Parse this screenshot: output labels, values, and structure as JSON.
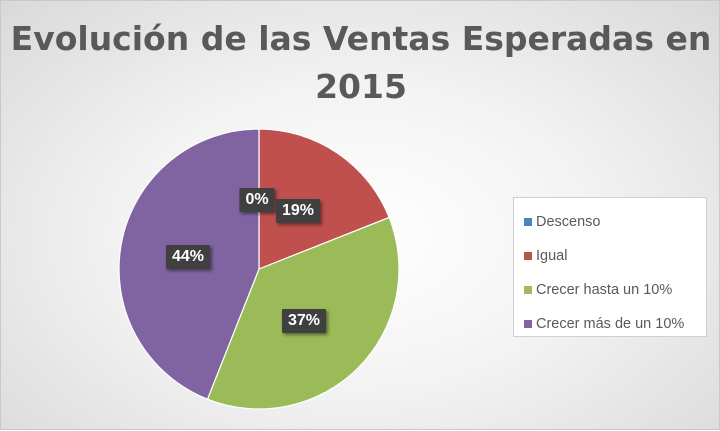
{
  "chart_data": {
    "type": "pie",
    "title_lines": [
      "Evolución de las Ventas Esperadas en",
      "2015"
    ],
    "categories": [
      "Descenso",
      "Igual",
      "Crecer hasta un 10%",
      "Crecer más de un 10%"
    ],
    "values": [
      0,
      19,
      37,
      44
    ],
    "data_labels": [
      "0%",
      "19%",
      "37%",
      "44%"
    ],
    "colors": [
      "#4f81bd",
      "#c0504d",
      "#9bbb59",
      "#8064a2"
    ],
    "legend_position": "right"
  }
}
